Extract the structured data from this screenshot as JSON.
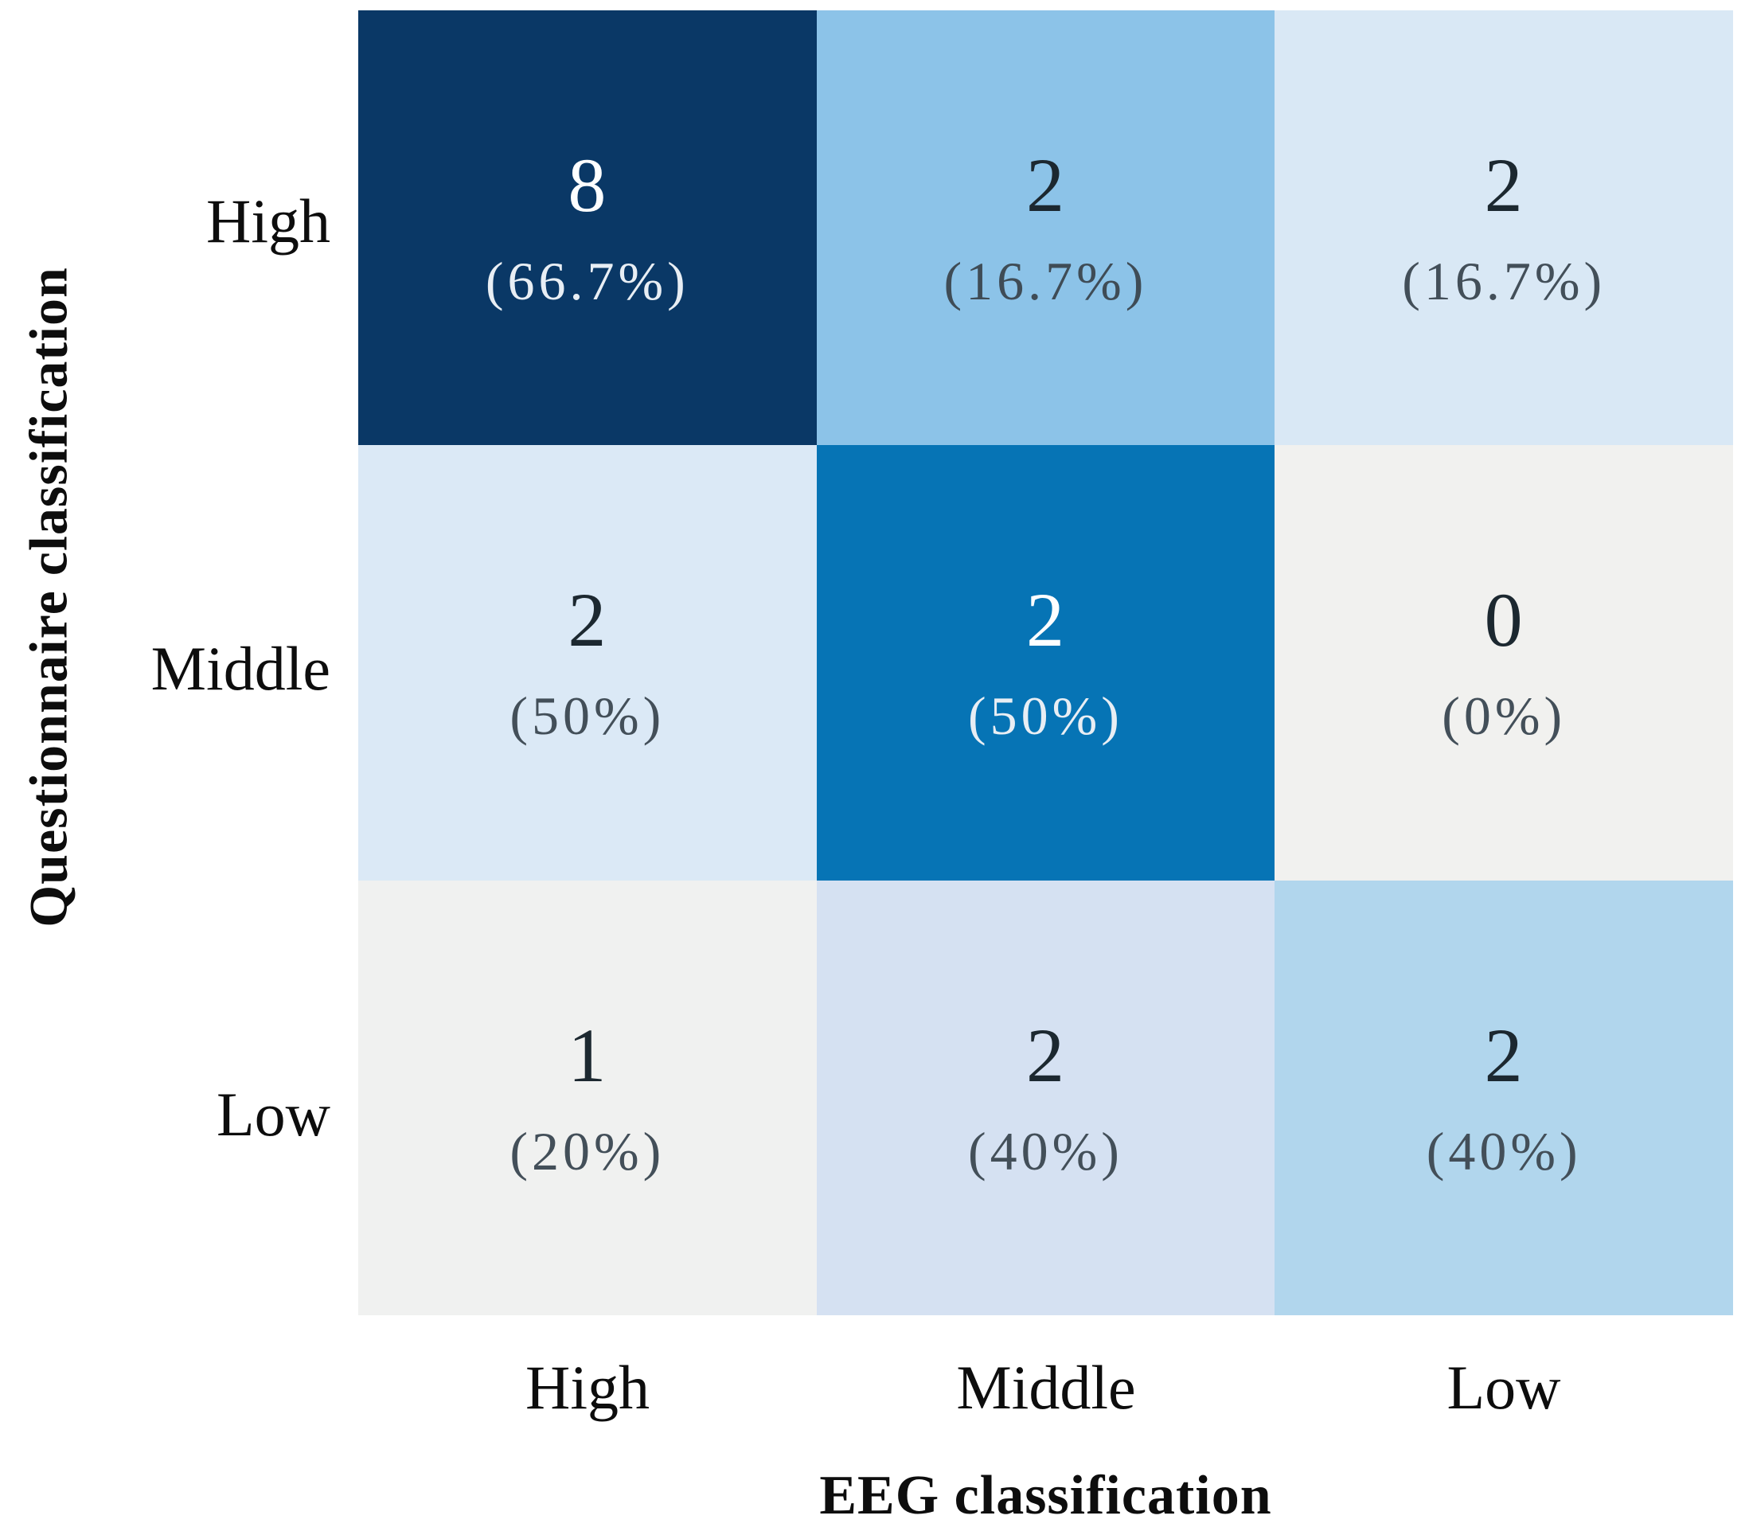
{
  "figure": {
    "background": "#ffffff",
    "y_axis_title": "Questionnaire classification",
    "x_axis_title": "EEG classification",
    "row_labels": [
      "High",
      "Middle",
      "Low"
    ],
    "col_labels": [
      "High",
      "Middle",
      "Low"
    ]
  },
  "cells": [
    {
      "row": "High",
      "col": "High",
      "count": "8",
      "percent": "(66.7%)",
      "bg": "#0a3866",
      "num_color": "#fdfeff",
      "pct_color": "#e8eef4"
    },
    {
      "row": "High",
      "col": "Middle",
      "count": "2",
      "percent": "(16.7%)",
      "bg": "#8cc3e8",
      "num_color": "#1c2830",
      "pct_color": "#3f4c56"
    },
    {
      "row": "High",
      "col": "Low",
      "count": "2",
      "percent": "(16.7%)",
      "bg": "#d9e8f5",
      "num_color": "#1c2830",
      "pct_color": "#434f59"
    },
    {
      "row": "Middle",
      "col": "High",
      "count": "2",
      "percent": "(50%)",
      "bg": "#dbe9f6",
      "num_color": "#1c2830",
      "pct_color": "#434f59"
    },
    {
      "row": "Middle",
      "col": "Middle",
      "count": "2",
      "percent": "(50%)",
      "bg": "#0674b5",
      "num_color": "#fdfeff",
      "pct_color": "#e8eef4"
    },
    {
      "row": "Middle",
      "col": "Low",
      "count": "0",
      "percent": "(0%)",
      "bg": "#f1f1ef",
      "num_color": "#1c2830",
      "pct_color": "#434f59"
    },
    {
      "row": "Low",
      "col": "High",
      "count": "1",
      "percent": "(20%)",
      "bg": "#f0f1f0",
      "num_color": "#1c2830",
      "pct_color": "#434f59"
    },
    {
      "row": "Low",
      "col": "Middle",
      "count": "2",
      "percent": "(40%)",
      "bg": "#d5e1f2",
      "num_color": "#1c2830",
      "pct_color": "#434f59"
    },
    {
      "row": "Low",
      "col": "Low",
      "count": "2",
      "percent": "(40%)",
      "bg": "#b1d6ed",
      "num_color": "#1c2830",
      "pct_color": "#434f59"
    }
  ],
  "chart_data": {
    "type": "heatmap",
    "title": "",
    "xlabel": "EEG classification",
    "ylabel": "Questionnaire classification",
    "x_categories": [
      "High",
      "Middle",
      "Low"
    ],
    "y_categories": [
      "High",
      "Middle",
      "Low"
    ],
    "values": [
      [
        8,
        2,
        2
      ],
      [
        2,
        2,
        0
      ],
      [
        1,
        2,
        2
      ]
    ],
    "percent_labels": [
      [
        "66.7%",
        "16.7%",
        "16.7%"
      ],
      [
        "50%",
        "50%",
        "0%"
      ],
      [
        "20%",
        "40%",
        "40%"
      ]
    ],
    "cell_colors": [
      [
        "#0a3866",
        "#8cc3e8",
        "#d9e8f5"
      ],
      [
        "#dbe9f6",
        "#0674b5",
        "#f1f1ef"
      ],
      [
        "#f0f1f0",
        "#d5e1f2",
        "#b1d6ed"
      ]
    ],
    "colormap": "blues",
    "grid": false,
    "legend_position": "none"
  }
}
